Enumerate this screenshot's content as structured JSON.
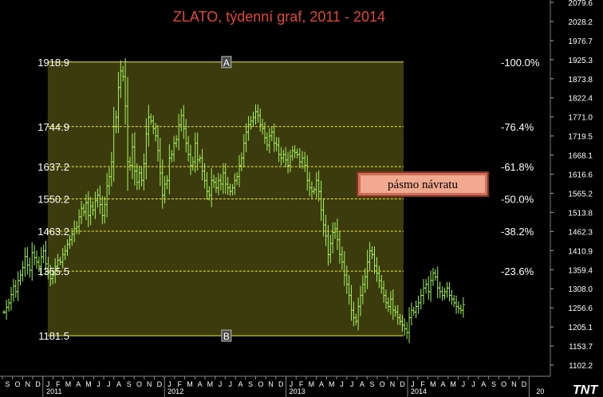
{
  "chart_data": {
    "type": "ohlc",
    "title": "ZLATO, týdenní graf, 2011 - 2014",
    "xlabel": "",
    "ylabel": "",
    "ylim": [
      1102.2,
      2079.6
    ],
    "grid": false,
    "right_axis_ticks": [
      "2079.6",
      "2028.2",
      "1976.7",
      "1925.3",
      "1873.8",
      "1822.4",
      "1771.0",
      "1719.5",
      "1668.1",
      "1616.6",
      "1565.2",
      "1513.8",
      "1462.3",
      "1410.9",
      "1359.4",
      "1308.0",
      "1256.6",
      "1205.1",
      "1153.7",
      "1102.2"
    ],
    "month_labels": [
      "S",
      "O",
      "N",
      "D",
      "J",
      "F",
      "M",
      "A",
      "M",
      "J",
      "J",
      "A",
      "S",
      "O",
      "N",
      "D",
      "J",
      "F",
      "M",
      "A",
      "M",
      "J",
      "J",
      "A",
      "S",
      "O",
      "N",
      "D",
      "J",
      "F",
      "M",
      "A",
      "M",
      "J",
      "J",
      "A",
      "S",
      "O",
      "N",
      "D",
      "J",
      "F",
      "M",
      "A",
      "M",
      "J",
      "J",
      "A",
      "S",
      "O",
      "N",
      "D"
    ],
    "first_month": "2010-09",
    "year_labels": [
      {
        "label": "2011",
        "month": "2011-01"
      },
      {
        "label": "2012",
        "month": "2012-01"
      },
      {
        "label": "2013",
        "month": "2013-01"
      },
      {
        "label": "2014",
        "month": "2014-01"
      },
      {
        "label": "20",
        "month": "2015-01"
      }
    ],
    "retracement": {
      "start_month": "2011-01",
      "end_month": "2013-12",
      "high": 1918.9,
      "low": 1181.5,
      "top_marker": "A",
      "bottom_marker": "B",
      "levels": [
        {
          "value": 1918.9,
          "label": "1918.9",
          "pct": "-100.0%",
          "style": "solid"
        },
        {
          "value": 1744.9,
          "label": "1744.9",
          "pct": "-76.4%",
          "style": "dashed"
        },
        {
          "value": 1637.2,
          "label": "1637.2",
          "pct": "-61.8%",
          "style": "dashed"
        },
        {
          "value": 1550.2,
          "label": "1550.2",
          "pct": "-50.0%",
          "style": "dashed"
        },
        {
          "value": 1463.2,
          "label": "1463.2",
          "pct": "-38.2%",
          "style": "dashed"
        },
        {
          "value": 1355.5,
          "label": "1355.5",
          "pct": "-23.6%",
          "style": "dashed"
        },
        {
          "value": 1181.5,
          "label": "1181.5",
          "pct": "",
          "style": "solid"
        }
      ]
    },
    "annotation": "pásmo návratu",
    "logo": "TNT",
    "series": [
      {
        "start_week": "2010-09-06",
        "close": [
          1245,
          1258,
          1270,
          1292,
          1315,
          1300,
          1330,
          1345,
          1365,
          1395,
          1372,
          1358,
          1405,
          1392,
          1380,
          1368,
          1394,
          1410,
          1375,
          1352,
          1335,
          1345,
          1368,
          1385,
          1380,
          1400,
          1410,
          1428,
          1440,
          1455,
          1470,
          1475,
          1502,
          1525,
          1515,
          1540,
          1505,
          1530,
          1520,
          1545,
          1560,
          1535,
          1505,
          1535,
          1585,
          1610,
          1650,
          1745,
          1770,
          1850,
          1895,
          1880,
          1800,
          1650,
          1640,
          1690,
          1625,
          1595,
          1620,
          1600,
          1645,
          1725,
          1770,
          1760,
          1740,
          1720,
          1680,
          1620,
          1560,
          1590,
          1600,
          1660,
          1670,
          1700,
          1710,
          1750,
          1775,
          1740,
          1700,
          1670,
          1640,
          1650,
          1700,
          1655,
          1660,
          1625,
          1600,
          1570,
          1560,
          1600,
          1595,
          1580,
          1600,
          1590,
          1620,
          1590,
          1580,
          1570,
          1580,
          1600,
          1610,
          1640,
          1660,
          1700,
          1730,
          1750,
          1760,
          1770,
          1785,
          1775,
          1750,
          1740,
          1715,
          1695,
          1720,
          1730,
          1700,
          1695,
          1670,
          1660,
          1670,
          1655,
          1640,
          1665,
          1680,
          1675,
          1670,
          1650,
          1660,
          1640,
          1600,
          1580,
          1570,
          1575,
          1600,
          1570,
          1520,
          1480,
          1450,
          1400,
          1430,
          1460,
          1470,
          1440,
          1400,
          1380,
          1345,
          1320,
          1290,
          1250,
          1230,
          1220,
          1260,
          1290,
          1320,
          1340,
          1380,
          1410,
          1400,
          1370,
          1350,
          1330,
          1310,
          1290,
          1270,
          1260,
          1280,
          1250,
          1245,
          1230,
          1220,
          1210,
          1200,
          1190,
          1230,
          1250,
          1245,
          1260,
          1270,
          1290,
          1310,
          1320,
          1300,
          1330,
          1350,
          1340,
          1310,
          1300,
          1290,
          1300,
          1310,
          1290,
          1280,
          1270,
          1260,
          1255,
          1250,
          1265
        ]
      }
    ]
  }
}
